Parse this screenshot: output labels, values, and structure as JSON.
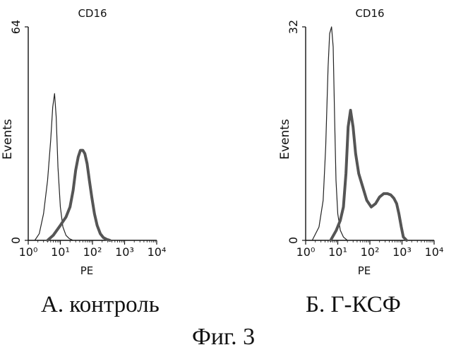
{
  "figure": {
    "caption": "Фиг. 3"
  },
  "chart_data": [
    {
      "type": "line",
      "title": "CD16",
      "xlabel": "PE",
      "ylabel": "Events",
      "caption": "А. контроль",
      "x_scale": "log",
      "xlim": [
        1,
        10000
      ],
      "ylim": [
        0,
        64
      ],
      "xticks": [
        1,
        10,
        100,
        1000,
        10000
      ],
      "xtick_labels": [
        "10⁰",
        "10¹",
        "10²",
        "10³",
        "10⁴"
      ],
      "yticks": [
        0,
        64
      ],
      "ytick_labels": [
        "0",
        "64"
      ],
      "series": [
        {
          "style": "thin",
          "x": [
            1.6,
            2.2,
            3.0,
            4.0,
            5.0,
            5.8,
            6.6,
            7.4,
            8.4,
            10.0,
            12.0,
            15.0,
            19.0,
            25.0
          ],
          "y": [
            0,
            2,
            8,
            18,
            30,
            40,
            44,
            37,
            22,
            10,
            4,
            1.5,
            0.5,
            0
          ]
        },
        {
          "style": "thick",
          "x": [
            4,
            6,
            10,
            15,
            20,
            25,
            30,
            36,
            42,
            50,
            58,
            68,
            80,
            95,
            115,
            140,
            175,
            220,
            280,
            350
          ],
          "y": [
            0,
            1.5,
            4.5,
            7,
            10,
            15,
            21,
            25,
            27,
            27,
            26,
            23,
            18,
            13,
            8,
            4.5,
            2,
            0.8,
            0.3,
            0
          ]
        }
      ]
    },
    {
      "type": "line",
      "title": "CD16",
      "xlabel": "PE",
      "ylabel": "Events",
      "caption": "Б. Г-КСФ",
      "x_scale": "log",
      "xlim": [
        1,
        10000
      ],
      "ylim": [
        0,
        32
      ],
      "xticks": [
        1,
        10,
        100,
        1000,
        10000
      ],
      "xtick_labels": [
        "10⁰",
        "10¹",
        "10²",
        "10³",
        "10⁴"
      ],
      "yticks": [
        0,
        32
      ],
      "ytick_labels": [
        "0",
        "32"
      ],
      "series": [
        {
          "style": "thin",
          "x": [
            1.6,
            2.6,
            3.5,
            4.2,
            5.0,
            5.6,
            6.4,
            7.2,
            8.0,
            8.8,
            10.0,
            12.0,
            15.0,
            20.0
          ],
          "y": [
            0,
            2,
            6,
            14,
            26,
            31,
            32,
            29,
            18,
            9,
            4,
            1.5,
            0.5,
            0
          ]
        },
        {
          "style": "thick",
          "x": [
            6,
            9,
            12,
            15,
            18,
            21,
            25,
            30,
            36,
            45,
            60,
            80,
            110,
            150,
            200,
            270,
            350,
            450,
            560,
            680,
            800,
            950,
            1100,
            1400
          ],
          "y": [
            0,
            1.5,
            3,
            5,
            10,
            17,
            19.5,
            17,
            13,
            10,
            8,
            6,
            5,
            5.5,
            6.5,
            7,
            7,
            6.8,
            6.3,
            5.5,
            4,
            2,
            0.5,
            0
          ]
        }
      ]
    }
  ],
  "panel_captions": [
    "А. контроль",
    "Б. Г-КСФ"
  ]
}
